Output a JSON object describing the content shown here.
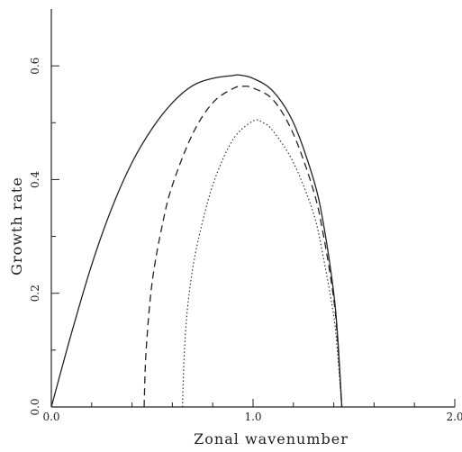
{
  "chart_data": {
    "type": "line",
    "title": "",
    "xlabel": "Zonal wavenumber",
    "ylabel": "Growth rate",
    "xlim": [
      0.0,
      2.0
    ],
    "ylim": [
      0.0,
      0.7
    ],
    "grid": false,
    "legend": "none",
    "x_ticks": [
      {
        "value": 0.0,
        "label": "0.0"
      },
      {
        "value": 1.0,
        "label": "1.0"
      },
      {
        "value": 2.0,
        "label": "2.0"
      }
    ],
    "x_minor_ticks": [
      0.2,
      0.4,
      0.6,
      0.8,
      1.2,
      1.4,
      1.6,
      1.8
    ],
    "y_ticks": [
      {
        "value": 0.0,
        "label": "0.0"
      },
      {
        "value": 0.2,
        "label": "0.2"
      },
      {
        "value": 0.4,
        "label": "0.4"
      },
      {
        "value": 0.6,
        "label": "0.6"
      }
    ],
    "y_minor_ticks": [
      0.1,
      0.3,
      0.5
    ],
    "series": [
      {
        "style": "solid",
        "x": [
          0.0,
          0.1,
          0.2,
          0.3,
          0.4,
          0.5,
          0.6,
          0.7,
          0.8,
          0.9,
          0.93,
          1.0,
          1.1,
          1.2,
          1.3,
          1.35,
          1.4,
          1.42,
          1.44
        ],
        "y": [
          0.0,
          0.13,
          0.25,
          0.35,
          0.43,
          0.49,
          0.535,
          0.565,
          0.578,
          0.583,
          0.584,
          0.578,
          0.555,
          0.5,
          0.4,
          0.32,
          0.2,
          0.12,
          0.0
        ]
      },
      {
        "style": "dashed",
        "x": [
          0.46,
          0.47,
          0.5,
          0.55,
          0.6,
          0.7,
          0.8,
          0.9,
          0.95,
          1.0,
          1.1,
          1.2,
          1.3,
          1.35,
          1.4,
          1.42,
          1.44
        ],
        "y": [
          0.0,
          0.1,
          0.22,
          0.32,
          0.39,
          0.48,
          0.535,
          0.56,
          0.564,
          0.561,
          0.54,
          0.48,
          0.38,
          0.3,
          0.19,
          0.11,
          0.0
        ]
      },
      {
        "style": "dotted",
        "x": [
          0.65,
          0.66,
          0.68,
          0.72,
          0.8,
          0.9,
          1.0,
          1.05,
          1.1,
          1.2,
          1.3,
          1.35,
          1.4,
          1.42,
          1.44
        ],
        "y": [
          0.0,
          0.1,
          0.19,
          0.28,
          0.39,
          0.47,
          0.503,
          0.5,
          0.485,
          0.43,
          0.34,
          0.26,
          0.16,
          0.09,
          0.0
        ]
      }
    ]
  }
}
